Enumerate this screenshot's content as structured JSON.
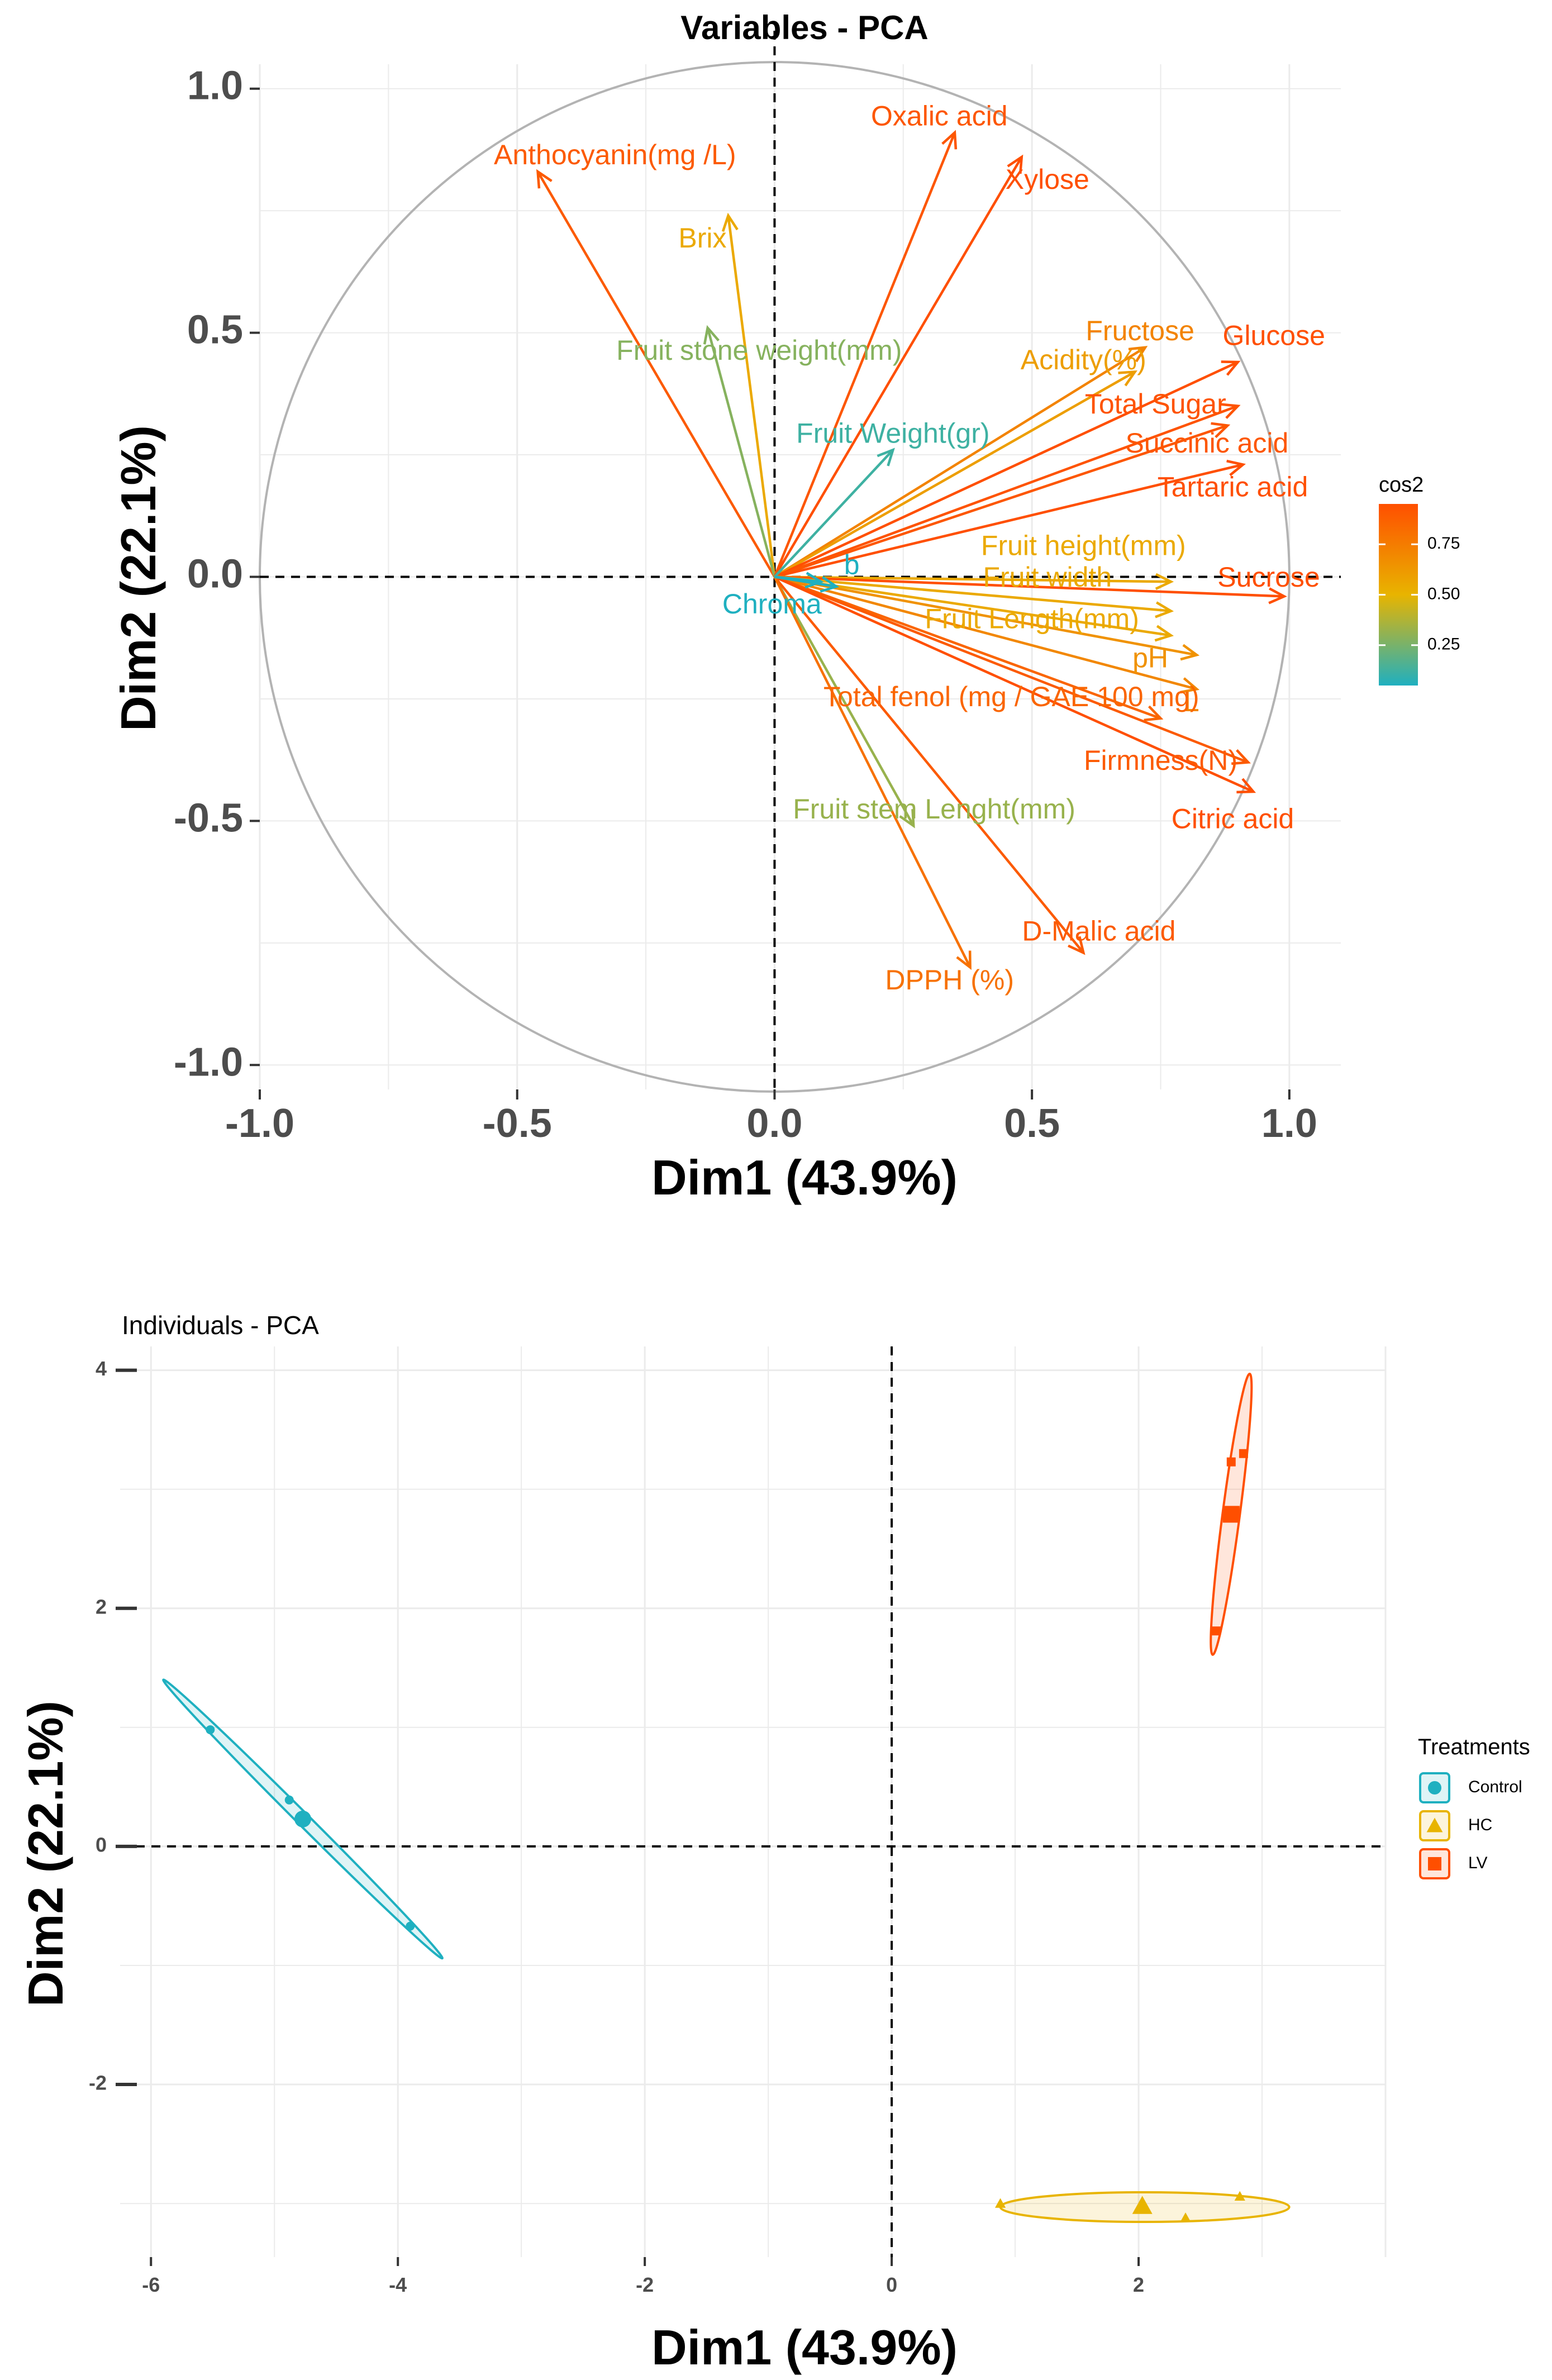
{
  "chart_data": [
    {
      "type": "scatter",
      "subtype": "pca-variable-correlation-circle",
      "title": "Variables - PCA",
      "xlabel": "Dim1 (43.9%)",
      "ylabel": "Dim2 (22.1%)",
      "xlim": [
        -1.0,
        1.1
      ],
      "ylim": [
        -1.05,
        1.05
      ],
      "xticks": [
        -1.0,
        -0.5,
        0.0,
        0.5,
        1.0
      ],
      "yticks": [
        -1.0,
        -0.5,
        0.0,
        0.5,
        1.0
      ],
      "xtick_labels": [
        "-1.0",
        "-0.5",
        "0.0",
        "0.5",
        "1.0"
      ],
      "ytick_labels": [
        "-1.0",
        "-0.5",
        "0.0",
        "0.5",
        "1.0"
      ],
      "grid": true,
      "legend": {
        "title": "cos2",
        "placement": "right",
        "ticks": [
          "0.75",
          "0.50",
          "0.25"
        ],
        "tick_values": [
          0.75,
          0.5,
          0.25
        ],
        "range": [
          0.05,
          0.95
        ],
        "colors": [
          "#1fb0c0",
          "#e8b400",
          "#ff4f00"
        ]
      },
      "variables": [
        {
          "label": "Anthocyanin(mg /L)",
          "x": -0.46,
          "y": 0.83,
          "cos2": 0.9,
          "lx": -0.31,
          "ly": 0.86
        },
        {
          "label": "Brix",
          "x": -0.09,
          "y": 0.74,
          "cos2": 0.55,
          "lx": -0.14,
          "ly": 0.69
        },
        {
          "label": "Fruit stone weight(mm)",
          "x": -0.13,
          "y": 0.51,
          "cos2": 0.28,
          "lx": -0.03,
          "ly": 0.46
        },
        {
          "label": "Oxalic acid",
          "x": 0.35,
          "y": 0.91,
          "cos2": 0.92,
          "lx": 0.32,
          "ly": 0.94
        },
        {
          "label": "Xylose",
          "x": 0.48,
          "y": 0.86,
          "cos2": 0.95,
          "lx": 0.53,
          "ly": 0.81
        },
        {
          "label": "Fructose",
          "x": 0.72,
          "y": 0.47,
          "cos2": 0.72,
          "lx": 0.71,
          "ly": 0.5
        },
        {
          "label": "Acidity(%)",
          "x": 0.7,
          "y": 0.42,
          "cos2": 0.6,
          "lx": 0.6,
          "ly": 0.44
        },
        {
          "label": "Glucose",
          "x": 0.9,
          "y": 0.44,
          "cos2": 0.95,
          "lx": 0.97,
          "ly": 0.49
        },
        {
          "label": "Total Sugar",
          "x": 0.9,
          "y": 0.35,
          "cos2": 0.93,
          "lx": 0.74,
          "ly": 0.35
        },
        {
          "label": "Succinic acid",
          "x": 0.88,
          "y": 0.31,
          "cos2": 0.92,
          "lx": 0.84,
          "ly": 0.27
        },
        {
          "label": "Tartaric acid",
          "x": 0.91,
          "y": 0.23,
          "cos2": 0.95,
          "lx": 0.89,
          "ly": 0.18
        },
        {
          "label": "Fruit Weight(gr)",
          "x": 0.23,
          "y": 0.26,
          "cos2": 0.12,
          "lx": 0.23,
          "ly": 0.29
        },
        {
          "label": "Fruit height(mm)",
          "x": 0.77,
          "y": -0.01,
          "cos2": 0.55,
          "lx": 0.6,
          "ly": 0.06
        },
        {
          "label": "Sucrose",
          "x": 0.99,
          "y": -0.04,
          "cos2": 0.97,
          "lx": 0.96,
          "ly": -0.005
        },
        {
          "label": "Fruit width",
          "x": 0.77,
          "y": -0.07,
          "cos2": 0.55,
          "lx": 0.53,
          "ly": -0.005
        },
        {
          "label": "Fruit Length(mm)",
          "x": 0.77,
          "y": -0.12,
          "cos2": 0.55,
          "lx": 0.5,
          "ly": -0.09
        },
        {
          "label": "pH",
          "x": 0.82,
          "y": -0.16,
          "cos2": 0.65,
          "lx": 0.73,
          "ly": -0.17
        },
        {
          "label": "L",
          "x": 0.82,
          "y": -0.23,
          "cos2": 0.7,
          "lx": 0.81,
          "ly": -0.26
        },
        {
          "label": "Total fenol (mg / GAE 100 mg)",
          "x": 0.75,
          "y": -0.29,
          "cos2": 0.85,
          "lx": 0.46,
          "ly": -0.25
        },
        {
          "label": "Firmness(N)",
          "x": 0.92,
          "y": -0.38,
          "cos2": 0.9,
          "lx": 0.75,
          "ly": -0.38
        },
        {
          "label": "Citric acid",
          "x": 0.93,
          "y": -0.44,
          "cos2": 0.95,
          "lx": 0.89,
          "ly": -0.5
        },
        {
          "label": "Fruit stem Lenght(mm)",
          "x": 0.27,
          "y": -0.51,
          "cos2": 0.32,
          "lx": 0.31,
          "ly": -0.48
        },
        {
          "label": "D-Malic acid",
          "x": 0.6,
          "y": -0.77,
          "cos2": 0.9,
          "lx": 0.63,
          "ly": -0.73
        },
        {
          "label": "DPPH (%)",
          "x": 0.38,
          "y": -0.8,
          "cos2": 0.8,
          "lx": 0.34,
          "ly": -0.83
        },
        {
          "label": "b",
          "x": 0.12,
          "y": -0.02,
          "cos2": 0.05,
          "lx": 0.15,
          "ly": 0.02
        },
        {
          "label": "Chroma",
          "x": 0.09,
          "y": -0.01,
          "cos2": 0.05,
          "lx": -0.005,
          "ly": -0.06
        }
      ]
    },
    {
      "type": "scatter",
      "subtype": "pca-individuals",
      "title": "Individuals - PCA",
      "xlabel": "Dim1 (43.9%)",
      "ylabel": "Dim2 (22.1%)",
      "xlim": [
        -6.25,
        4.0
      ],
      "ylim": [
        -3.45,
        4.2
      ],
      "xticks": [
        -6,
        -4,
        -2,
        0,
        2
      ],
      "yticks": [
        -2,
        0,
        2,
        4
      ],
      "xtick_labels": [
        "-6",
        "-4",
        "-2",
        "0",
        "2"
      ],
      "ytick_labels": [
        "-2",
        "0",
        "2",
        "4"
      ],
      "grid": true,
      "legend": {
        "title": "Treatments",
        "placement": "right"
      },
      "series": [
        {
          "name": "Control",
          "color": "#1fb0c0",
          "marker": "circle",
          "points": [
            {
              "x": -5.52,
              "y": 0.98
            },
            {
              "x": -4.88,
              "y": 0.39
            },
            {
              "x": -3.9,
              "y": -0.67
            }
          ],
          "centroid": {
            "x": -4.77,
            "y": 0.23
          },
          "ellipse": {
            "cx": -4.77,
            "cy": 0.23,
            "axis_dx": 1.13,
            "axis_dy": -1.17,
            "minor": 0.05
          }
        },
        {
          "name": "HC",
          "color": "#e8b400",
          "marker": "triangle",
          "points": [
            {
              "x": 0.88,
              "y": -3.0
            },
            {
              "x": 2.38,
              "y": -3.12
            },
            {
              "x": 2.82,
              "y": -2.94
            }
          ],
          "centroid": {
            "x": 2.03,
            "y": -3.02
          },
          "ellipse": {
            "cx": 2.05,
            "cy": -3.03,
            "axis_dx": 1.17,
            "axis_dy": 0.0,
            "minor": 0.12
          }
        },
        {
          "name": "LV",
          "color": "#ff4f00",
          "marker": "square",
          "points": [
            {
              "x": 2.75,
              "y": 3.23
            },
            {
              "x": 2.85,
              "y": 3.3
            },
            {
              "x": 2.63,
              "y": 1.81
            }
          ],
          "centroid": {
            "x": 2.75,
            "y": 2.79
          },
          "ellipse": {
            "cx": 2.75,
            "cy": 2.79,
            "axis_dx": 0.15,
            "axis_dy": 1.18,
            "minor": 0.07
          }
        }
      ]
    }
  ]
}
